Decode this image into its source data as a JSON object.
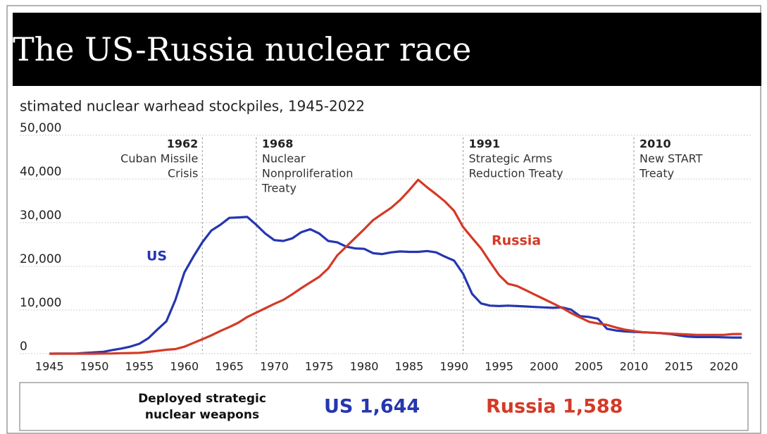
{
  "chart_data": {
    "type": "line",
    "title": "The US-Russia nuclear race",
    "subtitle": "stimated nuclear warhead stockpiles, 1945-2022",
    "x": [
      1945,
      1946,
      1947,
      1948,
      1949,
      1950,
      1951,
      1952,
      1953,
      1954,
      1955,
      1956,
      1957,
      1958,
      1959,
      1960,
      1961,
      1962,
      1963,
      1964,
      1965,
      1966,
      1967,
      1968,
      1969,
      1970,
      1971,
      1972,
      1973,
      1974,
      1975,
      1976,
      1977,
      1978,
      1979,
      1980,
      1981,
      1982,
      1983,
      1984,
      1985,
      1986,
      1987,
      1988,
      1989,
      1990,
      1991,
      1992,
      1993,
      1994,
      1995,
      1996,
      1997,
      1998,
      1999,
      2000,
      2001,
      2002,
      2003,
      2004,
      2005,
      2006,
      2007,
      2008,
      2009,
      2010,
      2011,
      2012,
      2013,
      2014,
      2015,
      2016,
      2017,
      2018,
      2019,
      2020,
      2021,
      2022
    ],
    "series": [
      {
        "name": "US",
        "color": "#2536b0",
        "values": [
          2,
          9,
          13,
          50,
          170,
          300,
          440,
          840,
          1170,
          1630,
          2280,
          3550,
          5540,
          7400,
          12300,
          18600,
          22200,
          25500,
          28200,
          29500,
          31100,
          31200,
          31300,
          29500,
          27500,
          26000,
          25800,
          26400,
          27800,
          28500,
          27500,
          25800,
          25500,
          24500,
          24100,
          24000,
          23000,
          22800,
          23200,
          23400,
          23300,
          23300,
          23500,
          23200,
          22200,
          21300,
          18300,
          13700,
          11500,
          11000,
          10900,
          11000,
          10900,
          10800,
          10700,
          10600,
          10500,
          10600,
          10100,
          8600,
          8400,
          8000,
          5700,
          5300,
          5100,
          5000,
          4900,
          4800,
          4700,
          4500,
          4200,
          3900,
          3800,
          3800,
          3800,
          3750,
          3700,
          3700
        ]
      },
      {
        "name": "Russia",
        "color": "#d33a26",
        "values": [
          0,
          0,
          0,
          0,
          1,
          5,
          25,
          50,
          120,
          150,
          200,
          400,
          650,
          900,
          1050,
          1600,
          2450,
          3300,
          4200,
          5200,
          6100,
          7100,
          8400,
          9400,
          10400,
          11400,
          12300,
          13600,
          15000,
          16300,
          17600,
          19500,
          22500,
          24500,
          26500,
          28500,
          30600,
          32000,
          33400,
          35200,
          37400,
          39800,
          38100,
          36500,
          34800,
          32700,
          29000,
          26500,
          24100,
          21000,
          18000,
          16000,
          15500,
          14500,
          13500,
          12500,
          11500,
          10500,
          9300,
          8300,
          7300,
          6900,
          6600,
          6000,
          5500,
          5200,
          4900,
          4800,
          4700,
          4600,
          4500,
          4400,
          4300,
          4300,
          4300,
          4300,
          4500,
          4500
        ]
      }
    ],
    "xlim": [
      1942,
      2023
    ],
    "xticks": [
      1945,
      1950,
      1955,
      1960,
      1965,
      1970,
      1975,
      1980,
      1985,
      1990,
      1995,
      2000,
      2005,
      2010,
      2015,
      2020
    ],
    "ylim": [
      0,
      50000
    ],
    "yticks": [
      0,
      {
        "value": 10000,
        "label": "10,000"
      },
      {
        "value": 20000,
        "label": "20,000"
      },
      {
        "value": 30000,
        "label": "30,000"
      },
      {
        "value": 40000,
        "label": "40,000"
      },
      {
        "value": 50000,
        "label": "50,000"
      }
    ],
    "grid": true,
    "annotations": [
      {
        "x": 1962,
        "align": "right",
        "lines": [
          "Cuban Missile",
          "Crisis"
        ]
      },
      {
        "x": 1968,
        "align": "left",
        "lines": [
          "Nuclear",
          "Nonproliferation",
          "Treaty"
        ]
      },
      {
        "x": 1991,
        "align": "left",
        "lines": [
          "Strategic Arms",
          "Reduction Treaty"
        ]
      },
      {
        "x": 2010,
        "align": "left",
        "lines": [
          "New START",
          "Treaty"
        ]
      }
    ]
  },
  "footer": {
    "label": [
      "Deployed strategic",
      "nuclear weapons"
    ],
    "items": [
      "US 1,644",
      "Russia 1,588"
    ]
  }
}
